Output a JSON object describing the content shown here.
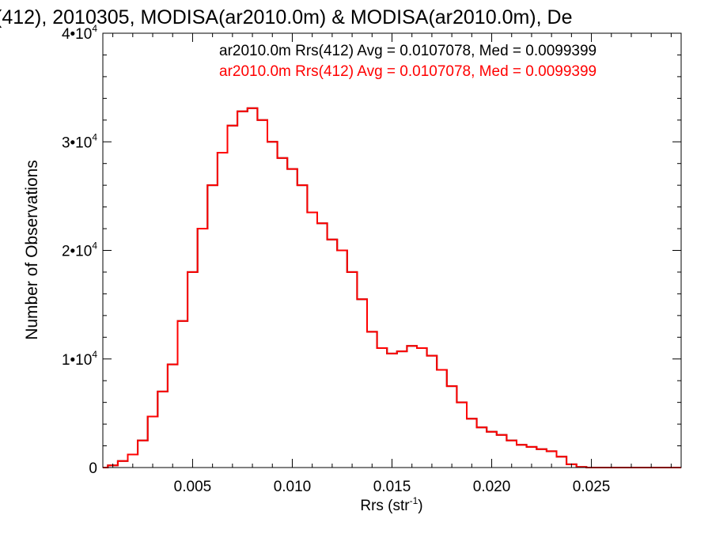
{
  "chart_data": {
    "type": "line",
    "title": "(412), 2010305, MODISA(ar2010.0m) & MODISA(ar2010.0m), De",
    "xlabel": "Rrs (str",
    "xlabel_sup": "-1",
    "xlabel_close": ")",
    "ylabel": "Number of Observations",
    "xlim": [
      0.0005,
      0.0295
    ],
    "ylim": [
      0,
      40000
    ],
    "x_ticks": [
      {
        "value": 0.005,
        "label": "0.005"
      },
      {
        "value": 0.01,
        "label": "0.010"
      },
      {
        "value": 0.015,
        "label": "0.015"
      },
      {
        "value": 0.02,
        "label": "0.020"
      },
      {
        "value": 0.025,
        "label": "0.025"
      }
    ],
    "y_ticks": [
      {
        "value": 0,
        "label": "0",
        "sup": ""
      },
      {
        "value": 10000,
        "label": "1•10",
        "sup": "4"
      },
      {
        "value": 20000,
        "label": "2•10",
        "sup": "4"
      },
      {
        "value": 30000,
        "label": "3•10",
        "sup": "4"
      },
      {
        "value": 40000,
        "label": "4•10",
        "sup": "4"
      }
    ],
    "annotations": [
      {
        "text": "ar2010.0m Rrs(412) Avg = 0.0107078, Med = 0.0099399",
        "color": "#000000"
      },
      {
        "text": "ar2010.0m Rrs(412) Avg = 0.0107078, Med = 0.0099399",
        "color": "#ff0000"
      }
    ],
    "series": [
      {
        "color": "#ff0000",
        "x": [
          0.0005,
          0.001,
          0.0015,
          0.002,
          0.0025,
          0.003,
          0.0035,
          0.004,
          0.0045,
          0.005,
          0.0055,
          0.006,
          0.0065,
          0.007,
          0.0075,
          0.008,
          0.0085,
          0.009,
          0.0095,
          0.01,
          0.0105,
          0.011,
          0.0115,
          0.012,
          0.0125,
          0.013,
          0.0135,
          0.014,
          0.0145,
          0.015,
          0.0155,
          0.016,
          0.0165,
          0.017,
          0.0175,
          0.018,
          0.0185,
          0.019,
          0.0195,
          0.02,
          0.0205,
          0.021,
          0.0215,
          0.022,
          0.0225,
          0.023,
          0.0235,
          0.024,
          0.0245,
          0.025,
          0.026,
          0.0275,
          0.0295
        ],
        "y": [
          0,
          200,
          600,
          1200,
          2500,
          4700,
          7000,
          9500,
          13500,
          18000,
          22000,
          26000,
          29000,
          31500,
          32800,
          33100,
          32000,
          30000,
          28500,
          27500,
          26000,
          23500,
          22500,
          21000,
          20000,
          18000,
          15500,
          12500,
          11000,
          10500,
          10700,
          11200,
          11000,
          10300,
          9000,
          7500,
          6000,
          4500,
          3700,
          3300,
          3000,
          2500,
          2100,
          1900,
          1700,
          1500,
          1000,
          300,
          50,
          0,
          0,
          0,
          0
        ]
      },
      {
        "color": "#000000",
        "x": [
          0.0005,
          0.001,
          0.0015,
          0.002,
          0.0025,
          0.003,
          0.0035,
          0.004,
          0.0045,
          0.005,
          0.0055,
          0.006,
          0.0065,
          0.007,
          0.0075,
          0.008,
          0.0085,
          0.009,
          0.0095,
          0.01,
          0.0105,
          0.011,
          0.0115,
          0.012,
          0.0125,
          0.013,
          0.0135,
          0.014,
          0.0145,
          0.015,
          0.0155,
          0.016,
          0.0165,
          0.017,
          0.0175,
          0.018,
          0.0185,
          0.019,
          0.0195,
          0.02,
          0.0205,
          0.021,
          0.0215,
          0.022,
          0.0225,
          0.023,
          0.0235,
          0.024,
          0.0245,
          0.025,
          0.026,
          0.0275,
          0.0295
        ],
        "y": [
          0,
          200,
          600,
          1200,
          2500,
          4700,
          7000,
          9500,
          13500,
          18000,
          22000,
          26000,
          29000,
          31500,
          32800,
          33100,
          32000,
          30000,
          28500,
          27500,
          26000,
          23500,
          22500,
          21000,
          20000,
          18000,
          15500,
          12500,
          11000,
          10500,
          10700,
          11200,
          11000,
          10300,
          9000,
          7500,
          6000,
          4500,
          3700,
          3300,
          3000,
          2500,
          2100,
          1900,
          1700,
          1500,
          1000,
          300,
          50,
          0,
          0,
          0,
          0
        ]
      }
    ]
  }
}
